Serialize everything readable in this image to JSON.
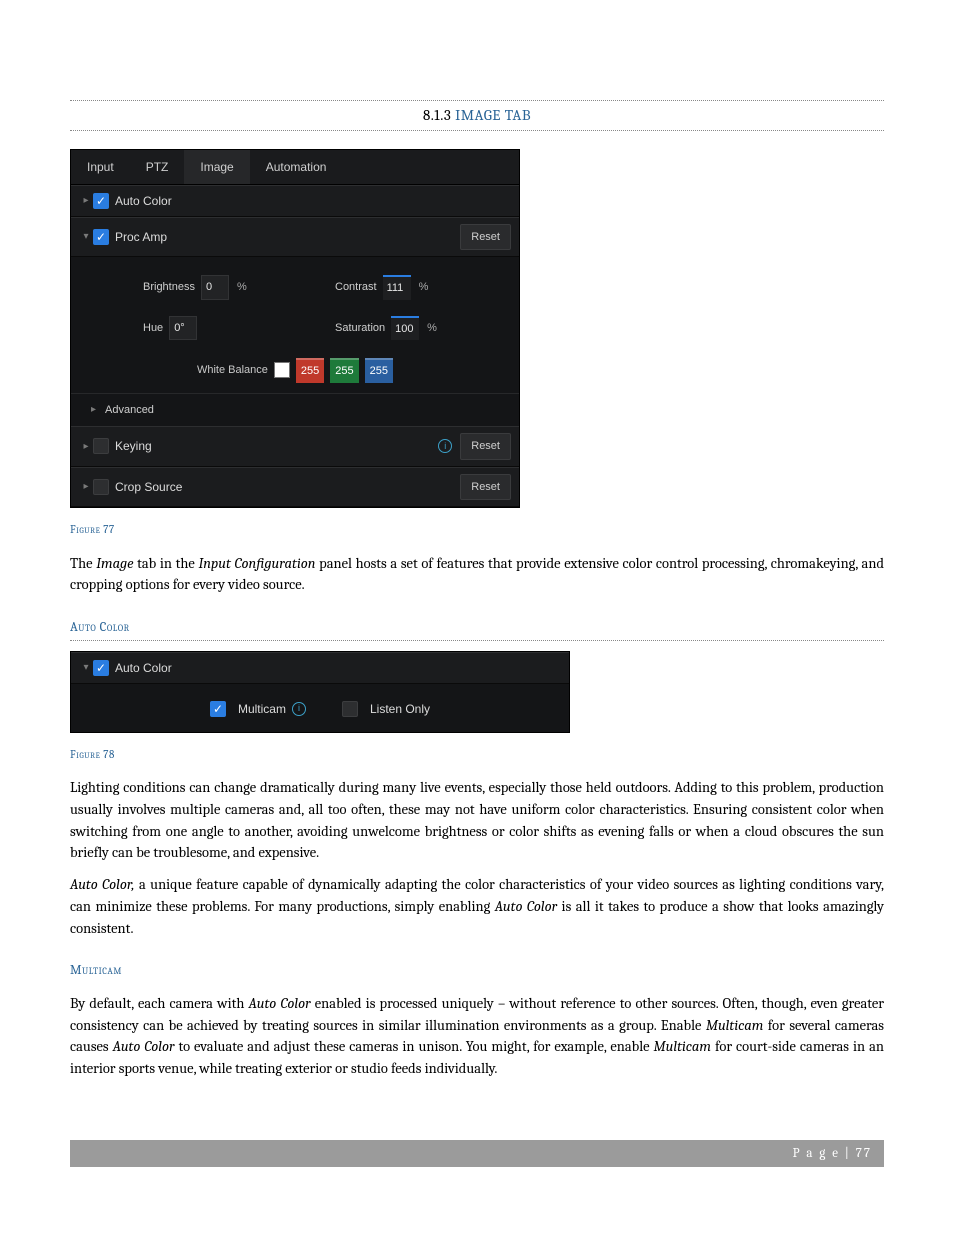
{
  "heading": {
    "number": "8.1.3",
    "title": "IMAGE TAB"
  },
  "figure77": {
    "tabs": {
      "input": "Input",
      "ptz": "PTZ",
      "image": "Image",
      "automation": "Automation"
    },
    "autoColor": {
      "label": "Auto Color",
      "checked": true
    },
    "procAmp": {
      "label": "Proc Amp",
      "checked": true,
      "reset": "Reset",
      "brightness": {
        "label": "Brightness",
        "value": "0",
        "unit": "%"
      },
      "contrast": {
        "label": "Contrast",
        "value": "111",
        "unit": "%"
      },
      "hue": {
        "label": "Hue",
        "value": "0°"
      },
      "saturation": {
        "label": "Saturation",
        "value": "100",
        "unit": "%"
      },
      "whiteBalance": {
        "label": "White Balance",
        "r": {
          "value": "255",
          "color": "#c0392b"
        },
        "g": {
          "value": "255",
          "color": "#1e7a3a"
        },
        "b": {
          "value": "255",
          "color": "#2a5fa0"
        }
      },
      "advanced": "Advanced"
    },
    "keying": {
      "label": "Keying",
      "checked": false,
      "reset": "Reset"
    },
    "cropSource": {
      "label": "Crop Source",
      "checked": false,
      "reset": "Reset"
    },
    "caption": "Figure 77"
  },
  "para1_a": "The ",
  "para1_b": "Image",
  "para1_c": " tab in the ",
  "para1_d": "Input Configuration",
  "para1_e": " panel hosts a set of features that provide extensive color control processing, chromakeying, and cropping options for every video source.",
  "sub_autocolor": "Auto Color",
  "figure78": {
    "autoColor": {
      "label": "Auto Color",
      "checked": true
    },
    "multicam": {
      "label": "Multicam",
      "checked": true
    },
    "listenOnly": {
      "label": "Listen Only",
      "checked": false
    },
    "caption": "Figure 78"
  },
  "para2": "Lighting conditions can change dramatically during many live events, especially those held outdoors. Adding to this problem, production usually involves multiple cameras and, all too often, these may not have uniform color characteristics. Ensuring consistent color when switching from one angle to another, avoiding unwelcome brightness or color shifts as evening falls or when a cloud obscures the sun briefly can be troublesome, and expensive.",
  "para3_a": "Auto Color,",
  "para3_b": " a unique feature capable of dynamically adapting the color characteristics of your video sources as lighting conditions vary, can minimize these problems.   For many productions, simply enabling ",
  "para3_c": "Auto Color",
  "para3_d": " is all it takes to produce a show that looks amazingly consistent.",
  "sub_multicam": "Multicam",
  "para4_a": "By default, each camera with ",
  "para4_b": "Auto Color",
  "para4_c": " enabled is processed uniquely – without reference to other sources.  Often, though, even greater consistency can be achieved by treating sources in similar illumination environments as a group.  Enable ",
  "para4_d": "Multicam",
  "para4_e": " for several cameras causes ",
  "para4_f": "Auto Color",
  "para4_g": " to evaluate and adjust these cameras in unison.  You might, for example, enable ",
  "para4_h": "Multicam",
  "para4_i": " for court-side cameras in an interior sports venue, while treating exterior or studio feeds individually.",
  "footer": {
    "label": "P a g e",
    "sep": " | ",
    "num": "77"
  }
}
